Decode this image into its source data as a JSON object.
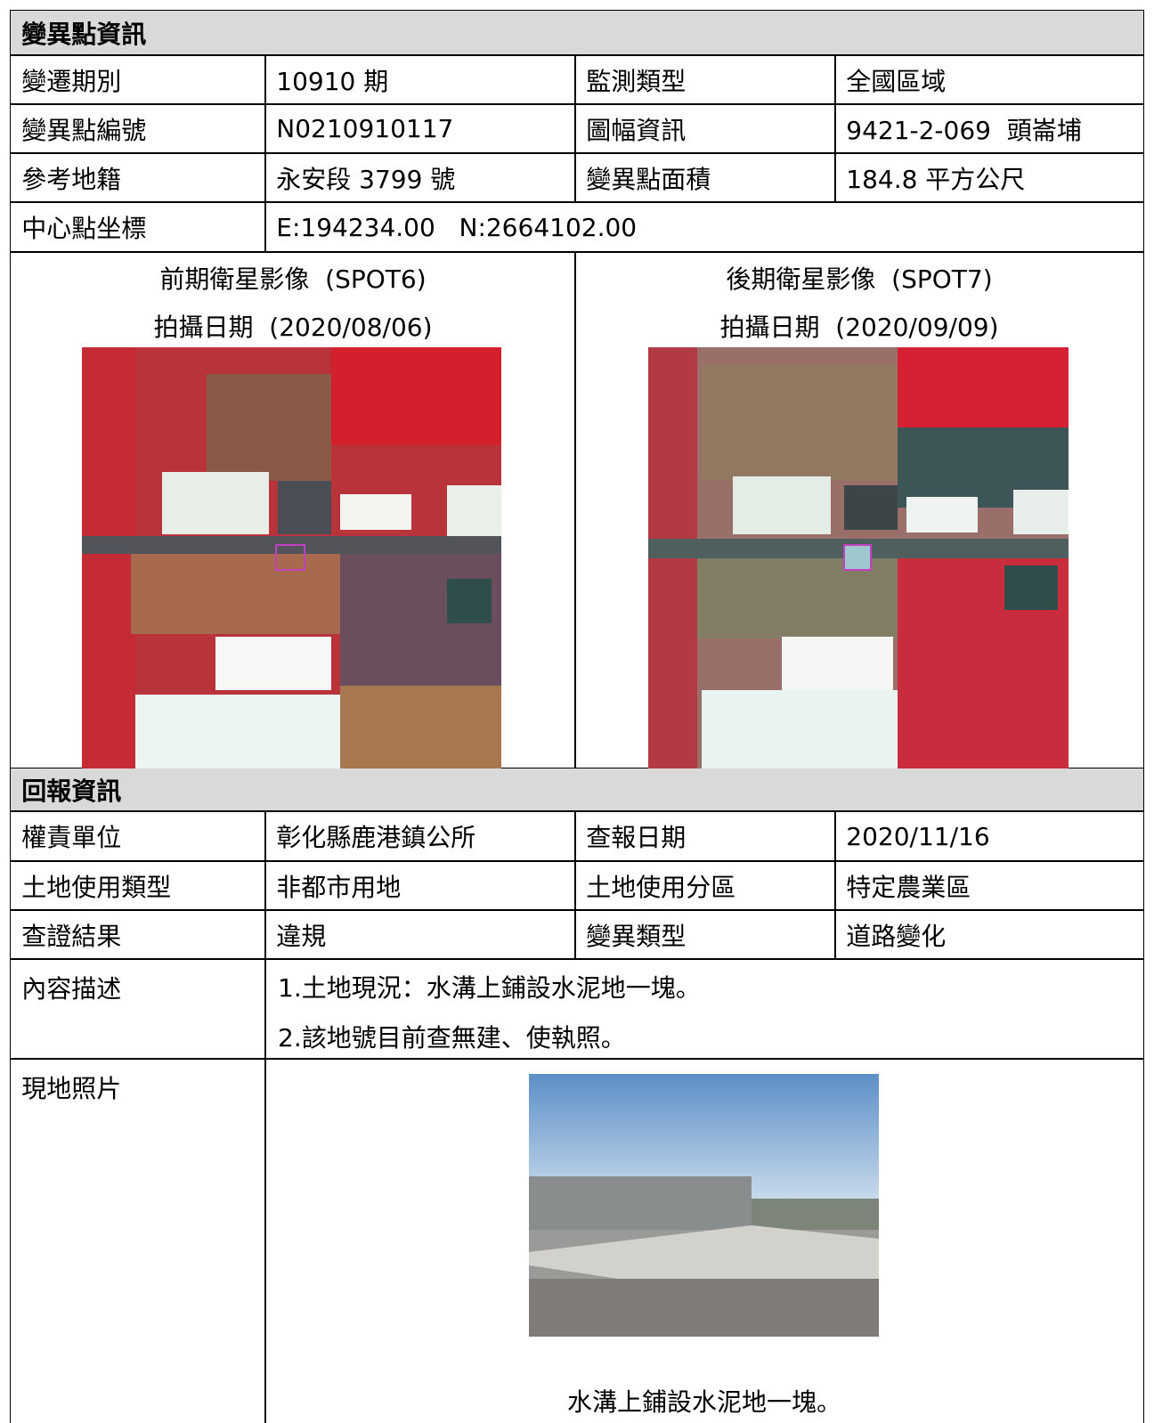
{
  "section1": {
    "title": "變異點資訊",
    "rows": [
      [
        "變遷期別",
        "10910 期",
        "監測類型",
        "全國區域"
      ],
      [
        "變異點編號",
        "N0210910117",
        "圖幅資訊",
        "9421-2-069  頭崙埔"
      ],
      [
        "參考地籍",
        "永安段 3799 號",
        "變異點面積",
        "184.8 平方公尺"
      ]
    ],
    "center": {
      "label": "中心點坐標",
      "value": "E:194234.00   N:2664102.00"
    }
  },
  "images": [
    {
      "caption": "前期衛星影像  (SPOT6)",
      "date": "拍攝日期  (2020/08/06)"
    },
    {
      "caption": "後期衛星影像  (SPOT7)",
      "date": "拍攝日期  (2020/09/09)"
    }
  ],
  "section2": {
    "title": "回報資訊",
    "rows": [
      [
        "權責單位",
        "彰化縣鹿港鎮公所",
        "查報日期",
        "2020/11/16"
      ],
      [
        "土地使用類型",
        "非都市用地",
        "土地使用分區",
        "特定農業區"
      ],
      [
        "查證結果",
        "違規",
        "變異類型",
        "道路變化"
      ]
    ],
    "description": {
      "label": "內容描述",
      "lines": [
        "1.土地現況：水溝上鋪設水泥地一塊。",
        "2.該地號目前查無建、使執照。"
      ]
    },
    "photo": {
      "label": "現地照片",
      "caption": "水溝上鋪設水泥地一塊。"
    }
  }
}
